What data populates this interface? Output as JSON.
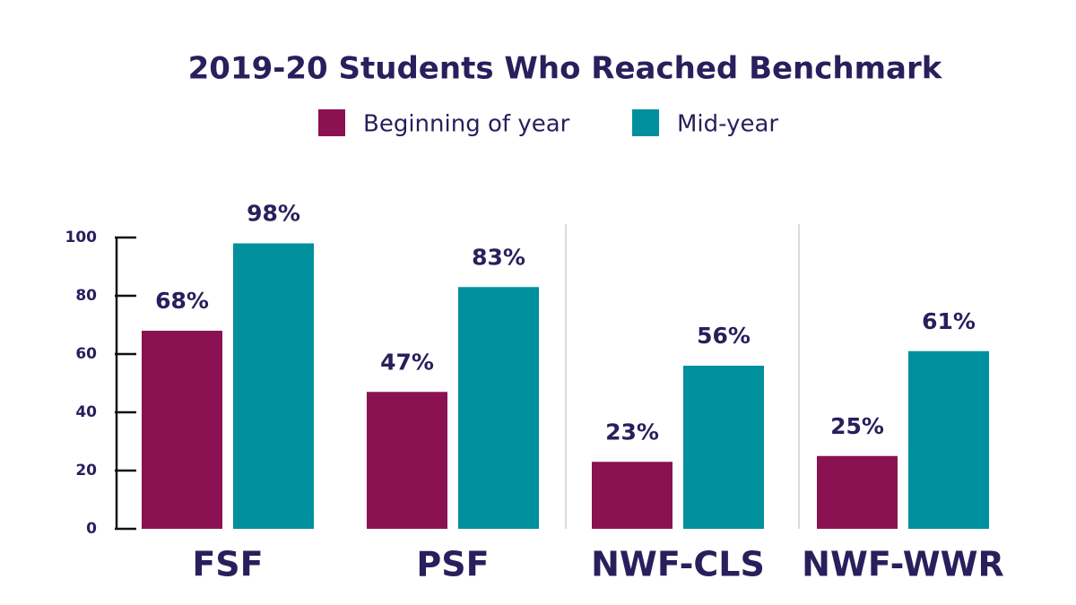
{
  "chart_data": {
    "type": "bar",
    "title": "2019-20 Students Who Reached Benchmark",
    "categories": [
      "FSF",
      "PSF",
      "NWF-CLS",
      "NWF-WWR"
    ],
    "series": [
      {
        "name": "Beginning of year",
        "color": "#8b1252",
        "values": [
          68,
          47,
          23,
          25
        ],
        "value_labels": [
          "68%",
          "47%",
          "23%",
          "25%"
        ]
      },
      {
        "name": "Mid-year",
        "color": "#00909d",
        "values": [
          98,
          83,
          56,
          61
        ],
        "value_labels": [
          "98%",
          "83%",
          "56%",
          "61%"
        ]
      }
    ],
    "ylim": [
      0,
      100
    ],
    "yticks": [
      0,
      20,
      40,
      60,
      80,
      100
    ]
  }
}
